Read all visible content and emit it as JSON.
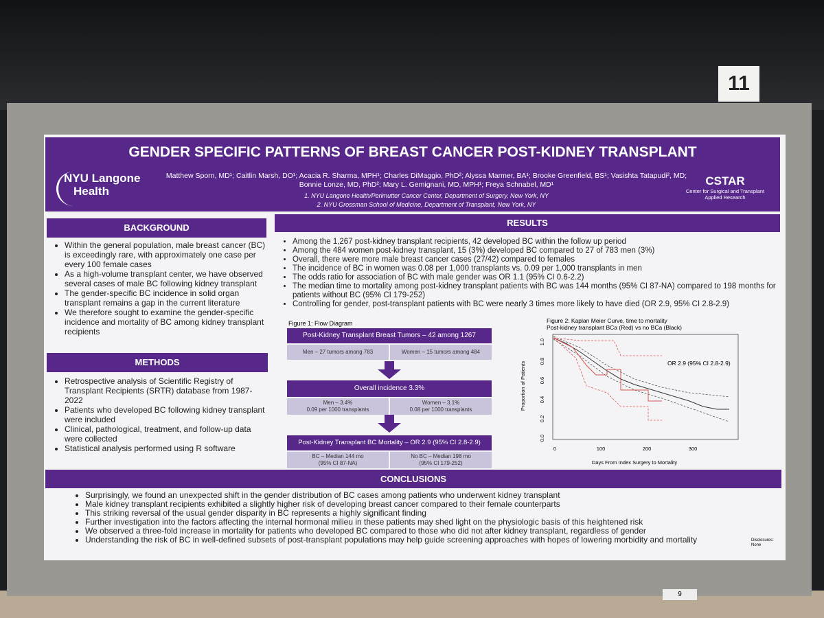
{
  "booth_number": "11",
  "stand_number": "9",
  "header": {
    "title": "GENDER SPECIFIC PATTERNS OF BREAST CANCER POST-KIDNEY TRANSPLANT",
    "logo_left": [
      "NYU Langone",
      "Health"
    ],
    "authors": [
      "Matthew Sporn, MD¹; Caitlin Marsh, DO¹; Acacia R. Sharma, MPH¹; Charles DiMaggio, PhD²; Alyssa Marmer, BA¹; Brooke Greenfield, BS¹; Vasishta Tatapudi², MD;",
      "Bonnie Lonze, MD, PhD²; Mary L. Gemignani, MD, MPH¹; Freya Schnabel, MD¹"
    ],
    "affiliations": [
      "1. NYU Langone Health/Perlmutter Cancer Center, Department of Surgery, New York, NY",
      "2. NYU Grossman School of Medicine, Department of Transplant, New York, NY"
    ],
    "logo_right": {
      "name": "CSTAR",
      "subtitle": [
        "Center for Surgical and Transplant",
        "Applied Research"
      ]
    }
  },
  "background": {
    "heading": "BACKGROUND",
    "bullets": [
      "Within the general population, male breast cancer (BC) is exceedingly rare, with approximately one case per every 100 female cases",
      "As a high-volume transplant center, we have observed several cases of male BC following kidney transplant",
      "The gender-specific BC incidence in solid organ transplant remains a gap in the current literature",
      "We therefore sought to examine the gender-specific incidence and mortality of BC among kidney transplant recipients"
    ]
  },
  "methods": {
    "heading": "METHODS",
    "bullets": [
      "Retrospective analysis of Scientific Registry of Transplant Recipients (SRTR) database from 1987-2022",
      "Patients who developed BC following kidney transplant were included",
      "Clinical, pathological, treatment, and follow-up data were collected",
      "Statistical analysis performed using R software"
    ]
  },
  "results": {
    "heading": "RESULTS",
    "bullets": [
      "Among the 1,267 post-kidney transplant recipients, 42 developed BC within the follow up period",
      "Among the 484 women post-kidney transplant, 15 (3%) developed BC compared to 27 of 783 men (3%)",
      "Overall, there were more male breast cancer cases (27/42) compared to females",
      "The incidence of BC in women was 0.08 per 1,000 transplants vs. 0.09 per 1,000 transplants in men",
      "The odds ratio for association of BC with male gender was OR 1.1 (95% CI 0.6-2.2)",
      "The median time to mortality among post-kidney transplant patients with BC was 144 months (95% CI 87-NA) compared to 198 months for patients without BC (95% CI 179-252)",
      "Controlling for gender, post-transplant patients with BC were nearly 3 times more likely to have died (OR 2.9, 95% CI 2.8-2.9)"
    ],
    "figure1": {
      "caption": "Figure 1: Flow Diagram",
      "box1": "Post-Kidney Transplant Breast Tumors – 42 among 1267",
      "box1_left": "Men – 27 tumors among 783",
      "box1_right": "Women – 15 tumors among 484",
      "box2": "Overall incidence 3.3%",
      "box2_left": [
        "Men – 3.4%",
        "0.09 per 1000 transplants"
      ],
      "box2_right": [
        "Women – 3.1%",
        "0.08 per 1000 transplants"
      ],
      "box3": "Post-Kidney Transplant BC Mortality – OR 2.9 (95% CI 2.8-2.9)",
      "box3_left": [
        "BC – Median 144 mo",
        "(95% CI 87-NA)"
      ],
      "box3_right": [
        "No BC – Median 198 mo",
        "(95% CI 179-252)"
      ]
    },
    "figure2": {
      "caption": [
        "Figure 2: Kaplan Meier Curve, time to mortality",
        "Post-kidney transplant BCa (Red) vs no BCa (Black)"
      ],
      "y_label": "Proportion of Patients",
      "x_label": "Days From Index Surgery to Mortality",
      "annotation": "OR 2.9 (95% CI 2.8-2.9)",
      "yticks": [
        "0.0",
        "0.2",
        "0.4",
        "0.6",
        "0.8",
        "1.0"
      ],
      "xticks": [
        "0",
        "100",
        "200",
        "300"
      ]
    }
  },
  "conclusions": {
    "heading": "CONCLUSIONS",
    "bullets": [
      "Surprisingly, we found an unexpected shift in the gender distribution of BC cases among patients who underwent kidney transplant",
      "Male kidney transplant recipients exhibited a slightly higher risk of developing breast cancer compared to their female counterparts",
      "This striking reversal of the usual gender disparity in BC represents a highly significant finding",
      "Further investigation into the factors affecting the internal hormonal milieu in these patients may shed light on the physiologic basis of this heightened risk",
      "We observed a three-fold increase in mortality for patients who developed BC compared to those who did not after kidney transplant, regardless of gender",
      "Understanding the risk of BC in well-defined subsets of post-transplant populations may help guide screening approaches with hopes of lowering morbidity and mortality"
    ]
  },
  "disclosures": [
    "Disclosures:",
    "None"
  ]
}
